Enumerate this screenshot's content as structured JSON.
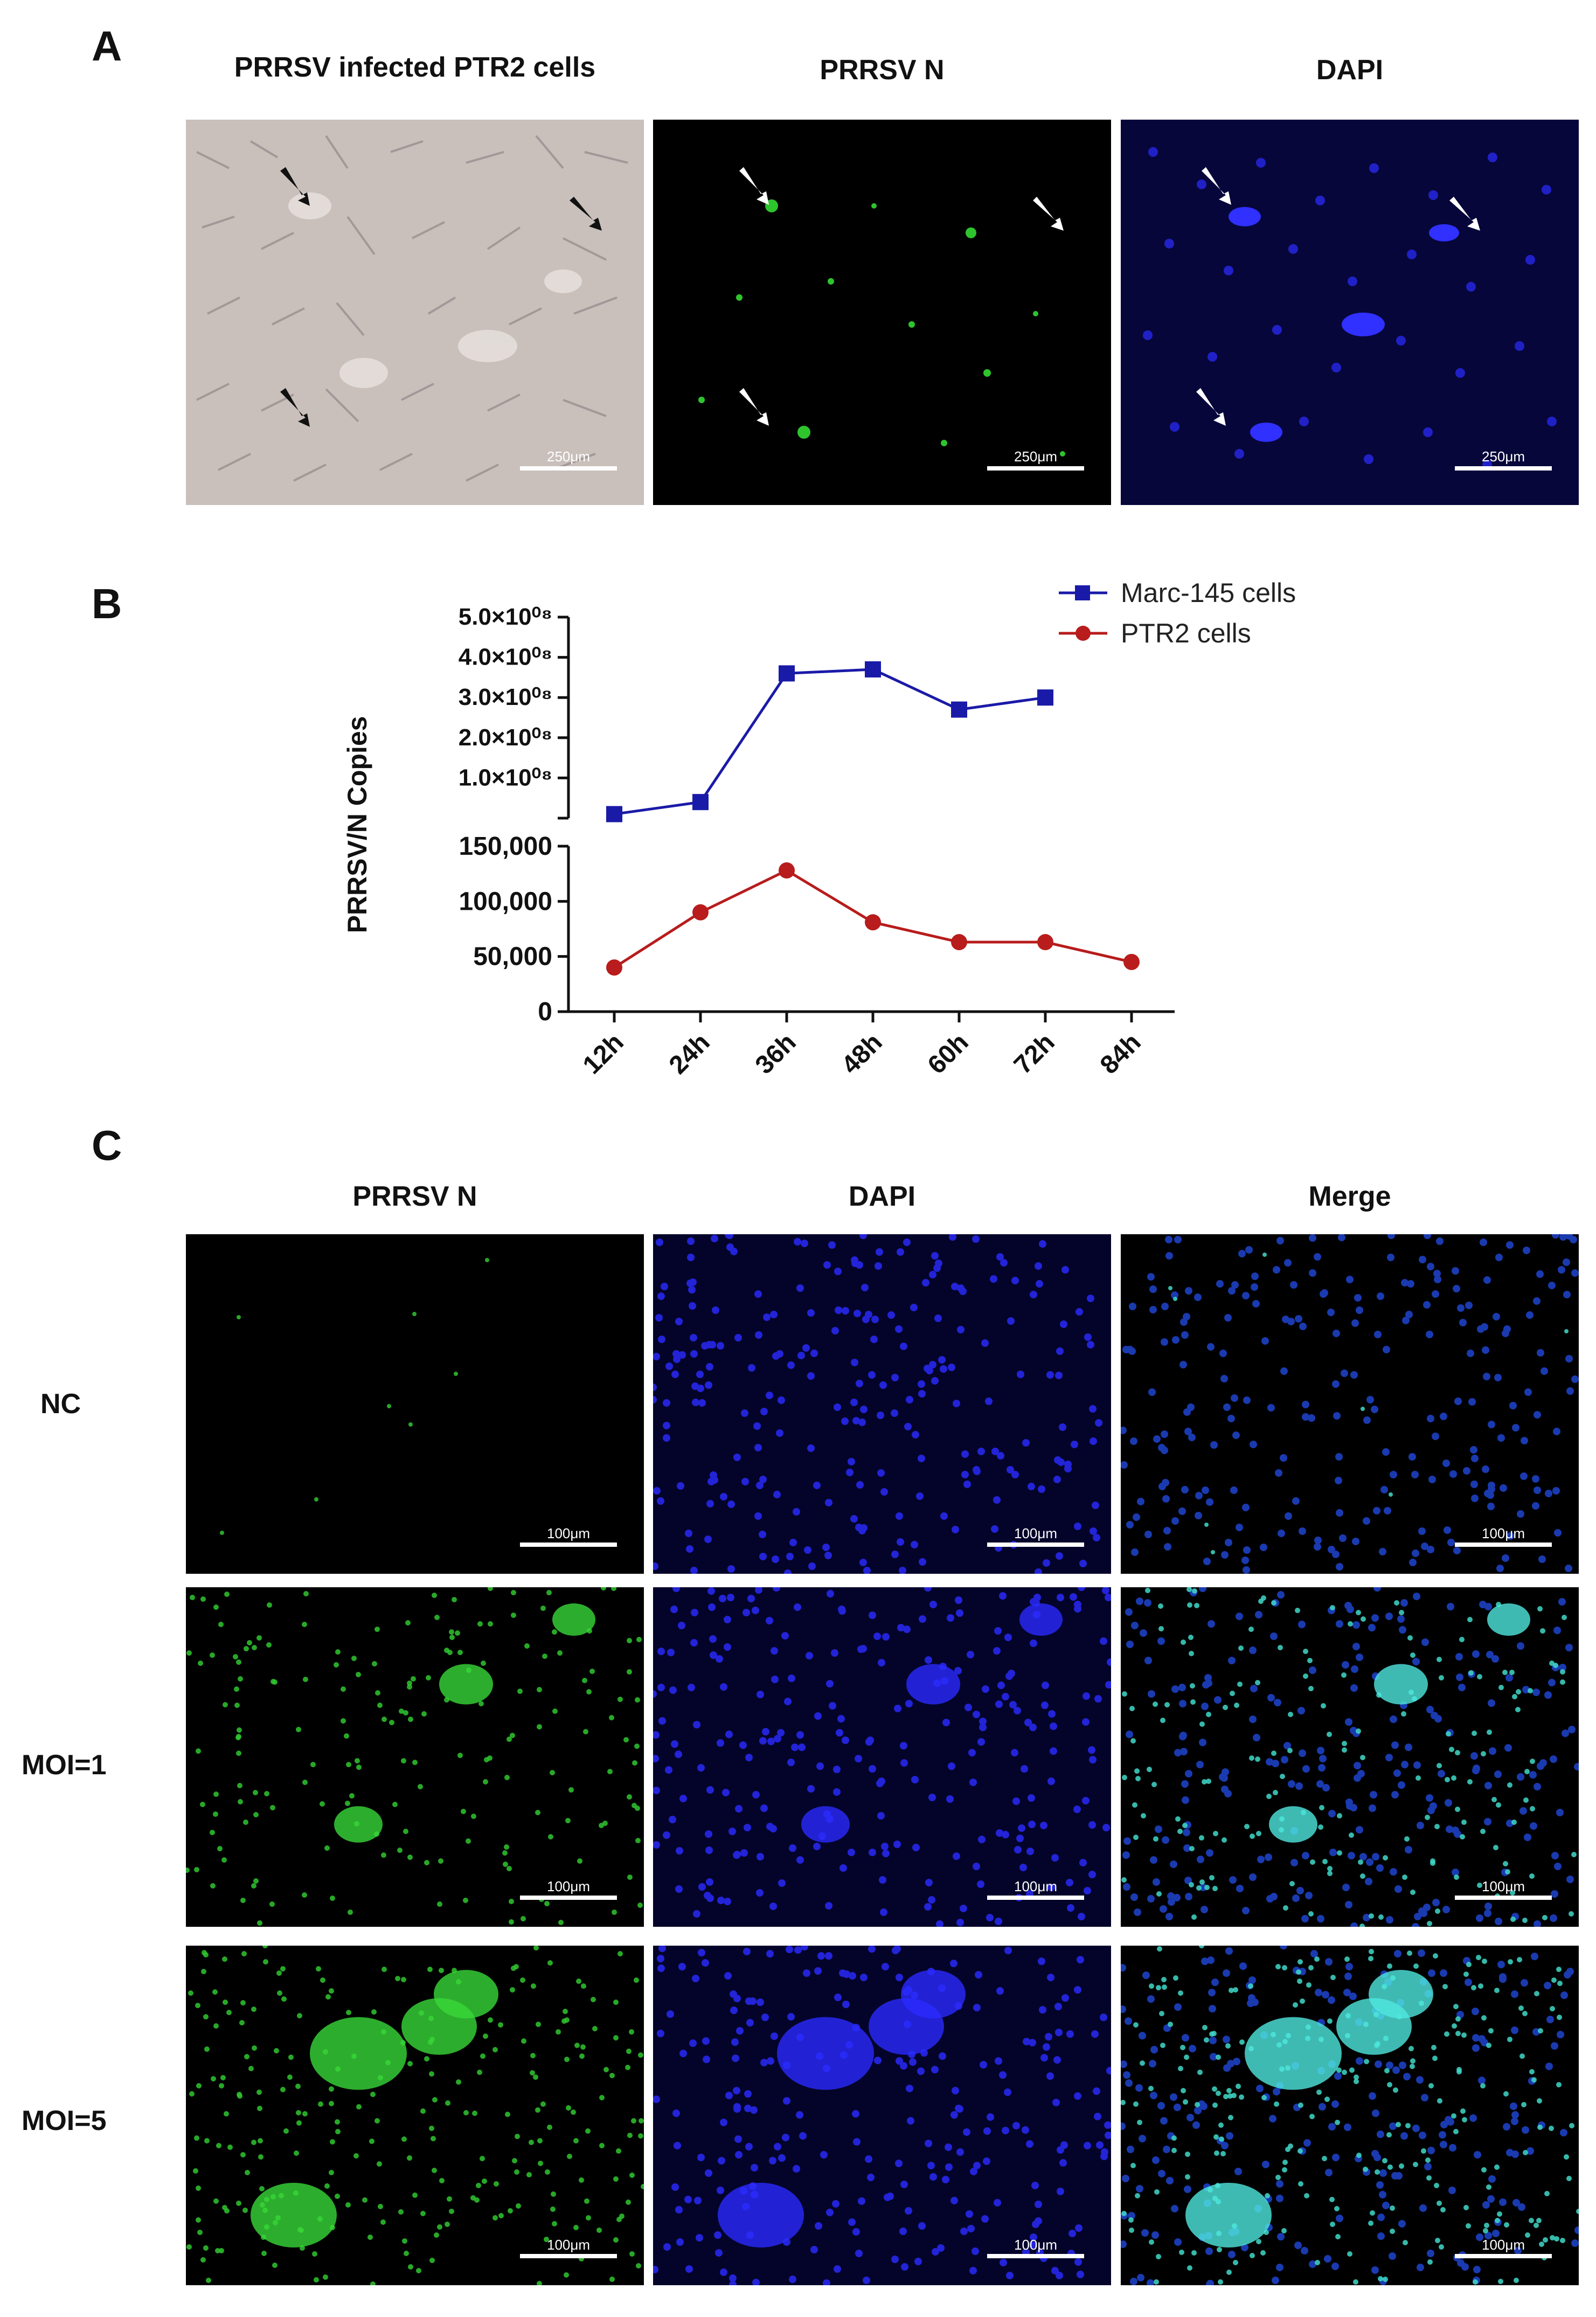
{
  "panel_labels": {
    "a": "A",
    "b": "B",
    "c": "C"
  },
  "panel_a": {
    "titles": [
      "PRRSV infected PTR2 cells",
      "PRRSV N",
      "DAPI"
    ],
    "scale_bar": "250μm"
  },
  "panel_c": {
    "col_titles": [
      "PRRSV N",
      "DAPI",
      "Merge"
    ],
    "row_labels": [
      "NC",
      "MOI=1",
      "MOI=5"
    ],
    "scale_bar": "100μm"
  },
  "chart_data": {
    "type": "line",
    "ylabel": "PRRSV/N Copies",
    "xlabel": "",
    "categories": [
      "12h",
      "24h",
      "36h",
      "48h",
      "60h",
      "72h",
      "84h"
    ],
    "y_axis_upper": {
      "range": [
        0,
        500000000
      ],
      "ticks": [
        0,
        100000000,
        200000000,
        300000000,
        400000000,
        500000000
      ],
      "tick_labels": [
        "",
        "1.0×10⁰⁸",
        "2.0×10⁰⁸",
        "3.0×10⁰⁸",
        "4.0×10⁰⁸",
        "5.0×10⁰⁸"
      ]
    },
    "y_axis_lower": {
      "range": [
        0,
        150000
      ],
      "ticks": [
        0,
        50000,
        100000,
        150000
      ],
      "tick_labels": [
        "0",
        "50,000",
        "100,000",
        "150,000"
      ]
    },
    "legend_position": "top-right",
    "series": [
      {
        "name": "Marc-145 cells",
        "color": "#1a1aa8",
        "marker": "square",
        "axis": "upper",
        "values": [
          10000000,
          40000000,
          360000000,
          370000000,
          270000000,
          300000000,
          null
        ]
      },
      {
        "name": "PTR2 cells",
        "color": "#b81c1c",
        "marker": "circle",
        "axis": "lower",
        "values": [
          40000,
          90000,
          128000,
          81000,
          63000,
          63000,
          45000
        ]
      }
    ]
  }
}
